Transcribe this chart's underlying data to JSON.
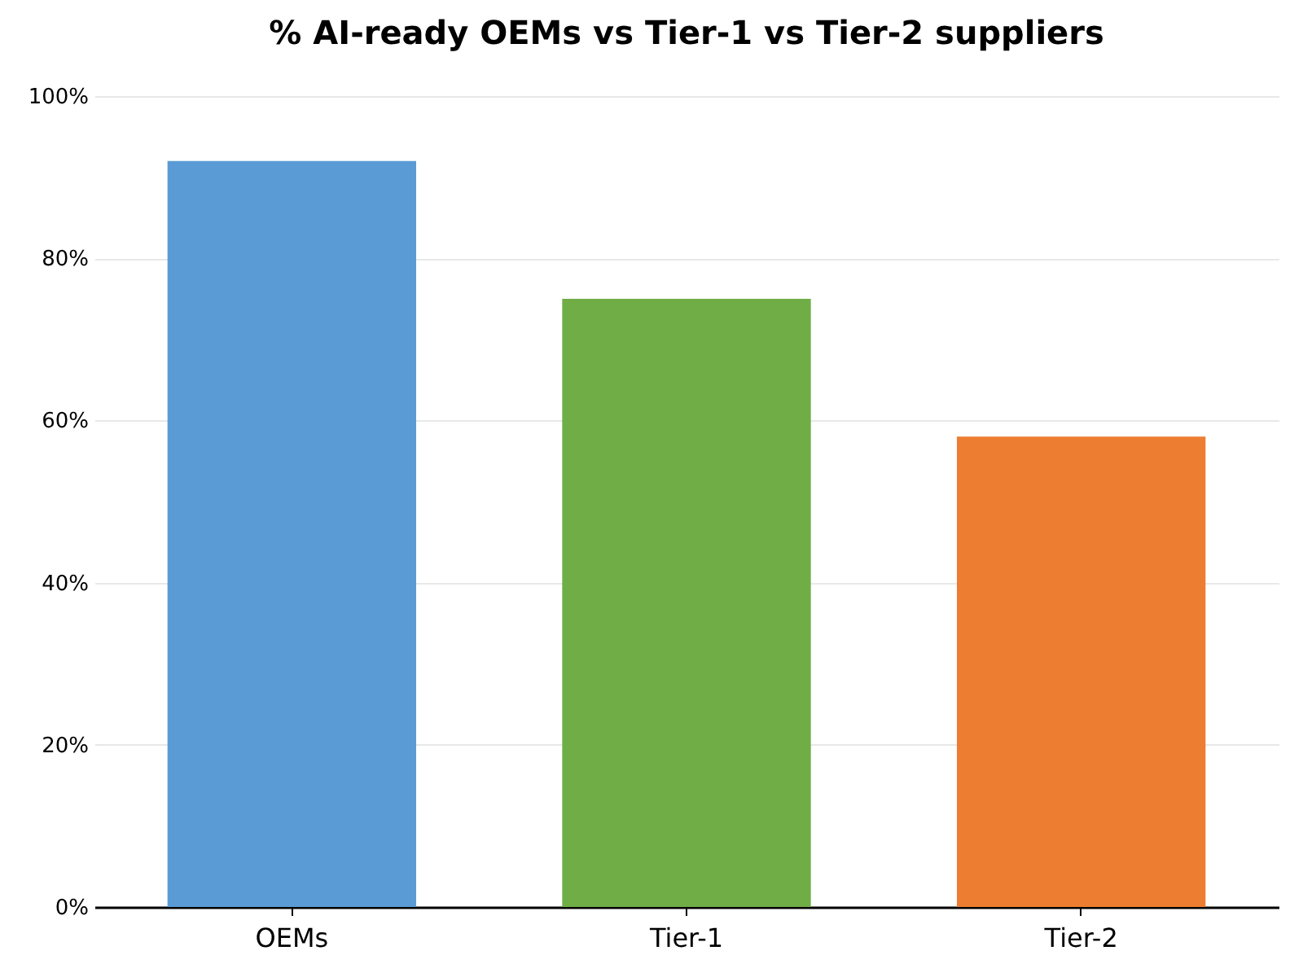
{
  "chart_data": {
    "type": "bar",
    "title": "% AI-ready OEMs vs Tier-1 vs Tier-2 suppliers",
    "categories": [
      "OEMs",
      "Tier-1",
      "Tier-2"
    ],
    "values": [
      92,
      75,
      58
    ],
    "colors": [
      "#5b9bd5",
      "#70ad47",
      "#ed7d31"
    ],
    "ylim": [
      0,
      100
    ],
    "yticks": [
      {
        "value": 0,
        "label": "0%"
      },
      {
        "value": 20,
        "label": "20%"
      },
      {
        "value": 40,
        "label": "40%"
      },
      {
        "value": 60,
        "label": "60%"
      },
      {
        "value": 80,
        "label": "80%"
      },
      {
        "value": 100,
        "label": "100%"
      }
    ],
    "grid": "y",
    "legend": false
  }
}
